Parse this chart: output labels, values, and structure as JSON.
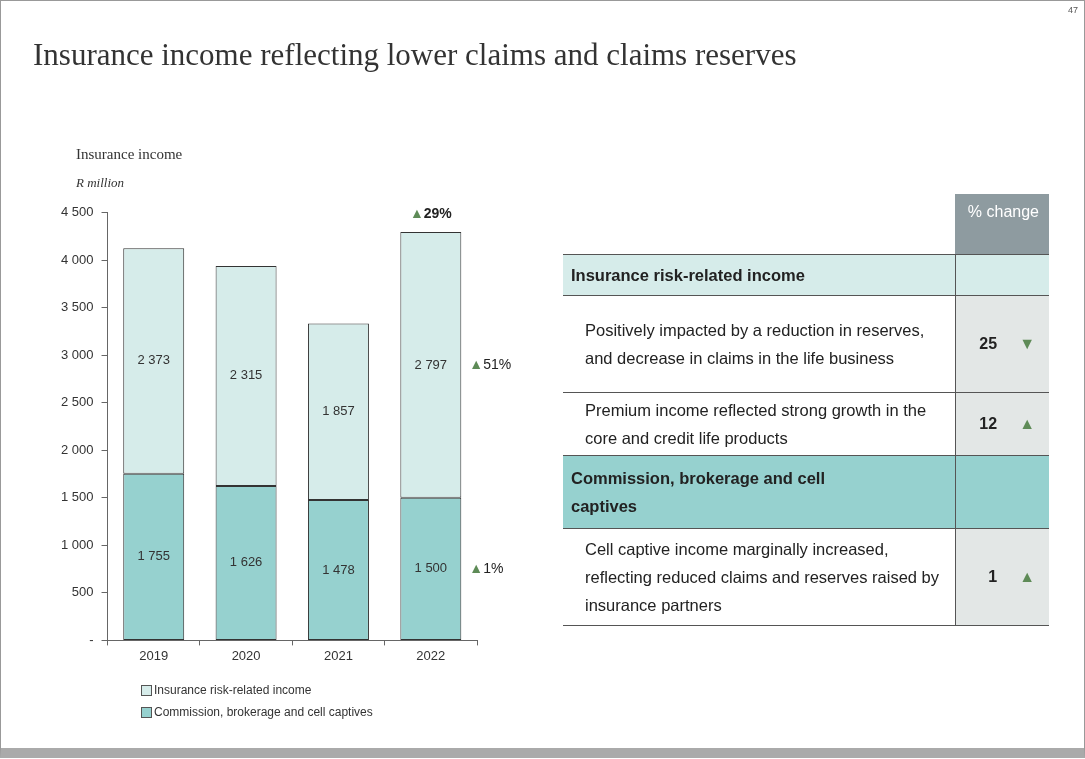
{
  "chart_data": [
    {
      "type": "bar",
      "title": "Insurance income reflecting lower claims and claims reserves",
      "subtitle": "Insurance income",
      "ylabel": "R million",
      "categories": [
        "2019",
        "2020",
        "2021",
        "2022"
      ],
      "stacked": true,
      "series": [
        {
          "name": "Commission, brokerage and cell captives",
          "color": "#96d1cf",
          "values": [
            1755,
            1626,
            1478,
            1500
          ],
          "value_labels": [
            "1 755",
            "1 626",
            "1 478",
            "1 500"
          ]
        },
        {
          "name": "Insurance risk-related income",
          "color": "#d6ecea",
          "values": [
            2373,
            2315,
            1857,
            2797
          ],
          "value_labels": [
            "2 373",
            "2 315",
            "1 857",
            "2 797"
          ]
        }
      ],
      "ylim": [
        0,
        4500
      ],
      "yticks": [
        {
          "value": 0,
          "label": "-"
        },
        {
          "value": 500,
          "label": "500"
        },
        {
          "value": 1000,
          "label": "1 000"
        },
        {
          "value": 1500,
          "label": "1 500"
        },
        {
          "value": 2000,
          "label": "2 000"
        },
        {
          "value": 2500,
          "label": "2 500"
        },
        {
          "value": 3000,
          "label": "3 000"
        },
        {
          "value": 3500,
          "label": "3 500"
        },
        {
          "value": 4000,
          "label": "4 000"
        },
        {
          "value": 4500,
          "label": "4 500"
        }
      ],
      "grid": false,
      "legend": "bottom left",
      "annotations": [
        {
          "text": "▲29%",
          "x": "2022",
          "y": 4297
        },
        "▲51%",
        "▲1%",
        "47"
      ]
    },
    {
      "type": "other",
      "title": "% change",
      "categories": [
        "Insurance risk-related income",
        "Positively impacted by a reduction in reserves, and decrease in claims in the life business",
        "Premium income reflected strong growth in the core and credit life products",
        "Commission, brokerage and cell captives",
        "Cell captive income marginally increased, reflecting reduced claims and reserves raised by insurance partners"
      ],
      "value_labels": [
        null,
        "25 ▼",
        "12 ▲",
        null,
        "1 ▲"
      ],
      "colors": [
        "#d6ecea",
        "#ffffff",
        "#ffffff",
        "#96d1cf",
        "#ffffff"
      ]
    }
  ]
}
